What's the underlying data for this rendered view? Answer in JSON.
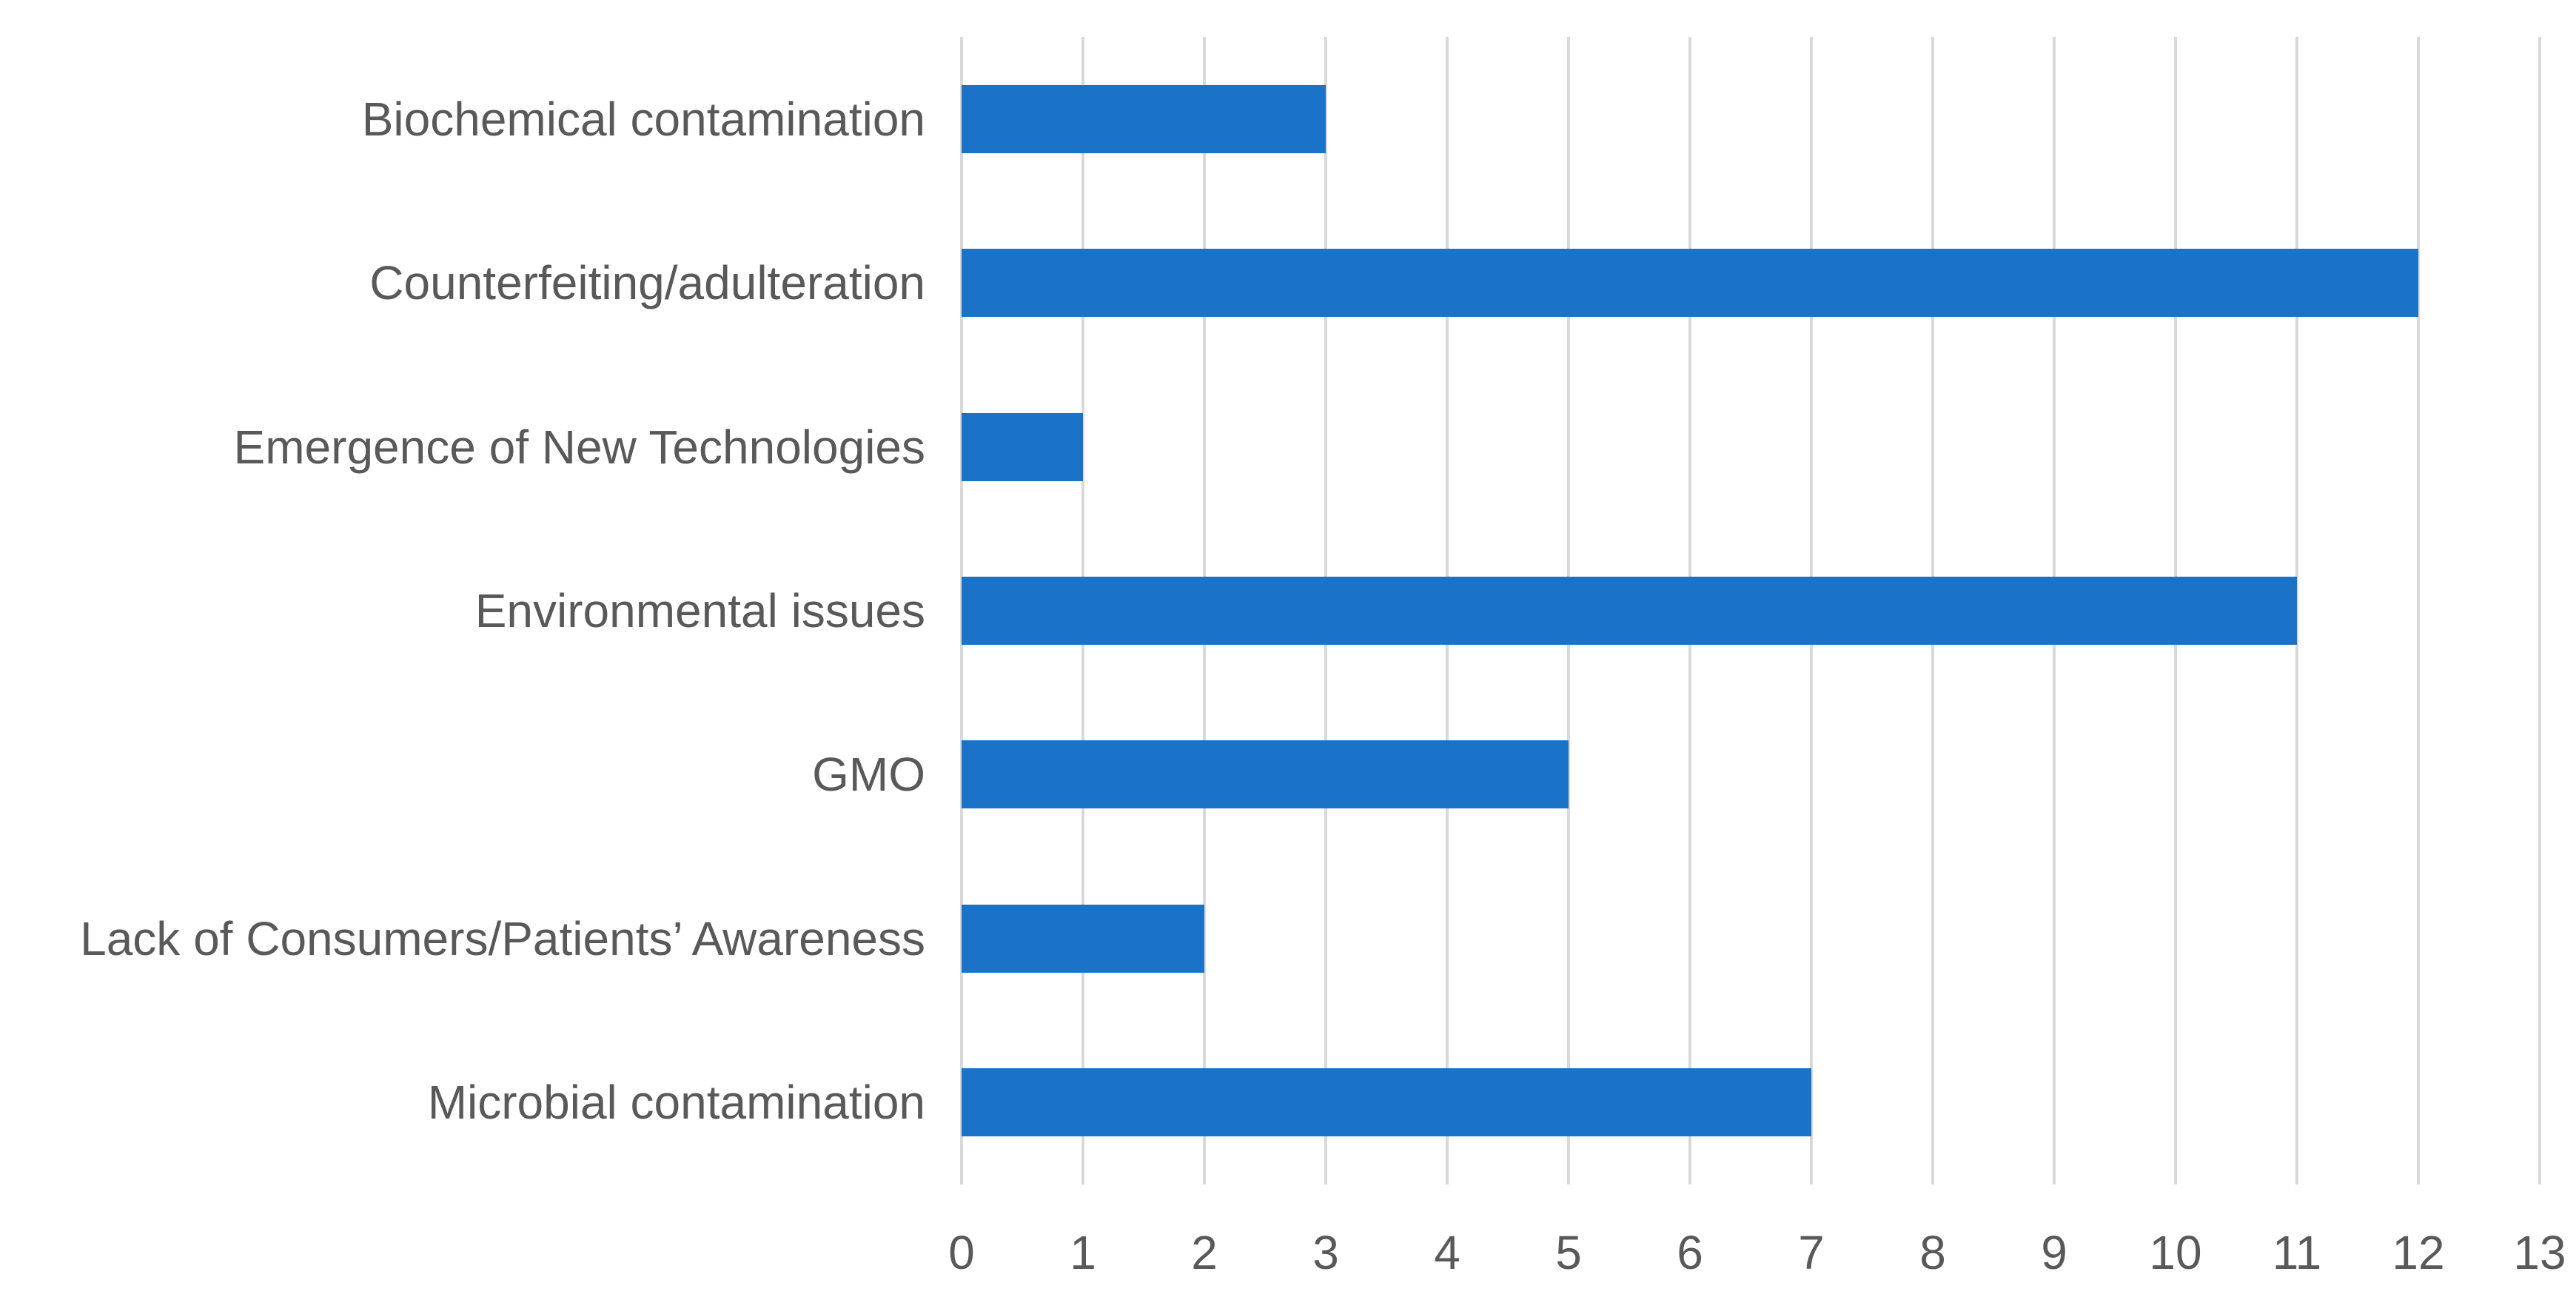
{
  "chart_data": {
    "type": "bar",
    "orientation": "horizontal",
    "title": "",
    "xlabel": "",
    "ylabel": "",
    "categories": [
      "Biochemical contamination",
      "Counterfeiting/adulteration",
      "Emergence of New Technologies",
      "Environmental issues",
      "GMO",
      "Lack of Consumers/Patients’ Awareness",
      "Microbial contamination"
    ],
    "values": [
      3,
      12,
      1,
      11,
      5,
      2,
      7
    ],
    "xlim": [
      0,
      13
    ],
    "xticks": [
      "0",
      "1",
      "2",
      "3",
      "4",
      "5",
      "6",
      "7",
      "8",
      "9",
      "10",
      "11",
      "12",
      "13"
    ],
    "grid": "vertical",
    "legend": false,
    "colors": {
      "bar": "#1B73C8",
      "gridline": "#D9D9D9",
      "axis_text": "#595959",
      "background": "#FFFFFF"
    }
  }
}
